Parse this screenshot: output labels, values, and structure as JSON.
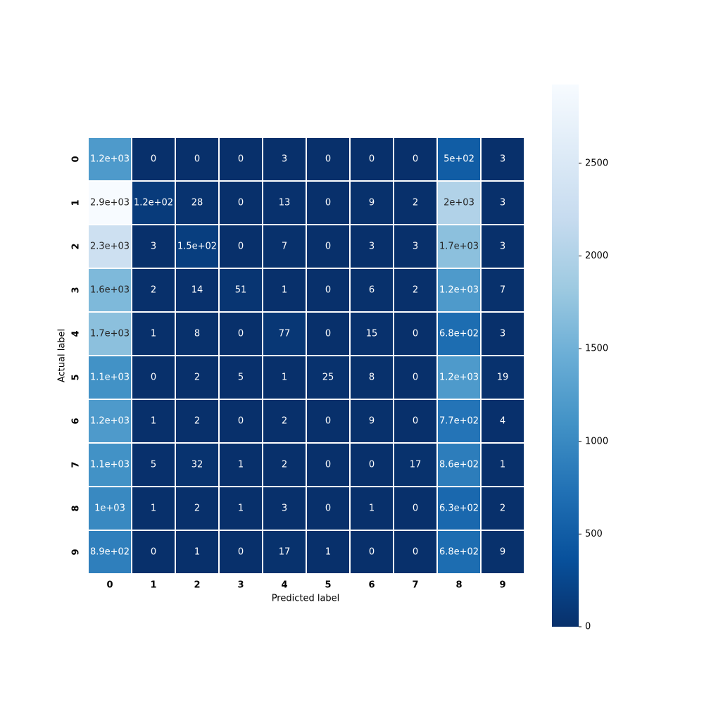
{
  "chart_data": {
    "type": "heatmap",
    "x_label": "Predicted label",
    "y_label": "Actual label",
    "x_categories": [
      "0",
      "1",
      "2",
      "3",
      "4",
      "5",
      "6",
      "7",
      "8",
      "9"
    ],
    "y_categories": [
      "0",
      "1",
      "2",
      "3",
      "4",
      "5",
      "6",
      "7",
      "8",
      "9"
    ],
    "values": [
      [
        1200,
        0,
        0,
        0,
        3,
        0,
        0,
        0,
        500,
        3
      ],
      [
        2925,
        120,
        28,
        0,
        13,
        0,
        9,
        2,
        2000,
        3
      ],
      [
        2300,
        3,
        150,
        0,
        7,
        0,
        3,
        3,
        1700,
        3
      ],
      [
        1600,
        2,
        14,
        51,
        1,
        0,
        6,
        2,
        1200,
        7
      ],
      [
        1700,
        1,
        8,
        0,
        77,
        0,
        15,
        0,
        680,
        3
      ],
      [
        1100,
        0,
        2,
        5,
        1,
        25,
        8,
        0,
        1200,
        19
      ],
      [
        1200,
        1,
        2,
        0,
        2,
        0,
        9,
        0,
        770,
        4
      ],
      [
        1100,
        5,
        32,
        1,
        2,
        0,
        0,
        17,
        860,
        1
      ],
      [
        1000,
        1,
        2,
        1,
        3,
        0,
        1,
        0,
        630,
        2
      ],
      [
        890,
        0,
        1,
        0,
        17,
        1,
        0,
        0,
        680,
        9
      ]
    ],
    "value_labels": [
      [
        "1.2e+03",
        "0",
        "0",
        "0",
        "3",
        "0",
        "0",
        "0",
        "5e+02",
        "3"
      ],
      [
        "2.9e+03",
        "1.2e+02",
        "28",
        "0",
        "13",
        "0",
        "9",
        "2",
        "2e+03",
        "3"
      ],
      [
        "2.3e+03",
        "3",
        "1.5e+02",
        "0",
        "7",
        "0",
        "3",
        "3",
        "1.7e+03",
        "3"
      ],
      [
        "1.6e+03",
        "2",
        "14",
        "51",
        "1",
        "0",
        "6",
        "2",
        "1.2e+03",
        "7"
      ],
      [
        "1.7e+03",
        "1",
        "8",
        "0",
        "77",
        "0",
        "15",
        "0",
        "6.8e+02",
        "3"
      ],
      [
        "1.1e+03",
        "0",
        "2",
        "5",
        "1",
        "25",
        "8",
        "0",
        "1.2e+03",
        "19"
      ],
      [
        "1.2e+03",
        "1",
        "2",
        "0",
        "2",
        "0",
        "9",
        "0",
        "7.7e+02",
        "4"
      ],
      [
        "1.1e+03",
        "5",
        "32",
        "1",
        "2",
        "0",
        "0",
        "17",
        "8.6e+02",
        "1"
      ],
      [
        "1e+03",
        "1",
        "2",
        "1",
        "3",
        "0",
        "1",
        "0",
        "6.3e+02",
        "2"
      ],
      [
        "8.9e+02",
        "0",
        "1",
        "0",
        "17",
        "1",
        "0",
        "0",
        "6.8e+02",
        "9"
      ]
    ],
    "colormap": [
      "#08306b",
      "#08519c",
      "#2171b5",
      "#4292c6",
      "#6baed6",
      "#9ecae1",
      "#c6dbef",
      "#deebf7",
      "#f7fbff"
    ],
    "colorbar_lim": [
      0,
      2925
    ],
    "colorbar_ticks": [
      0,
      500,
      1000,
      1500,
      2000,
      2500
    ]
  }
}
